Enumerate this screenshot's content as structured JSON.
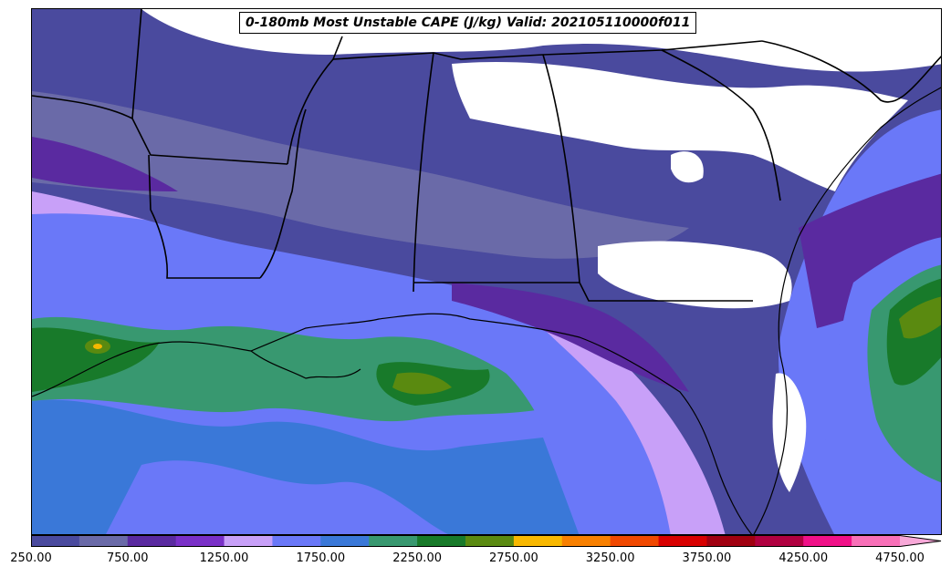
{
  "title": "0-180mb Most Unstable CAPE (J/kg) Valid: 202105110000f011",
  "colorbar": {
    "tick_labels": [
      "250.00",
      "750.00",
      "1250.00",
      "1750.00",
      "2250.00",
      "2750.00",
      "3250.00",
      "3750.00",
      "4250.00",
      "4750.00"
    ],
    "colors": [
      "#4a4a9e",
      "#6a6aa8",
      "#5a2aa0",
      "#7a30c8",
      "#c8a0f8",
      "#6a78f8",
      "#3a78d8",
      "#389870",
      "#187a2a",
      "#5a8a10",
      "#f8b800",
      "#f88000",
      "#f04800",
      "#d80000",
      "#a00010",
      "#b00040",
      "#f01088",
      "#f870b8",
      "#f8a8d8"
    ]
  },
  "palette": {
    "background": "#ffffff",
    "boundary": "#000000"
  }
}
